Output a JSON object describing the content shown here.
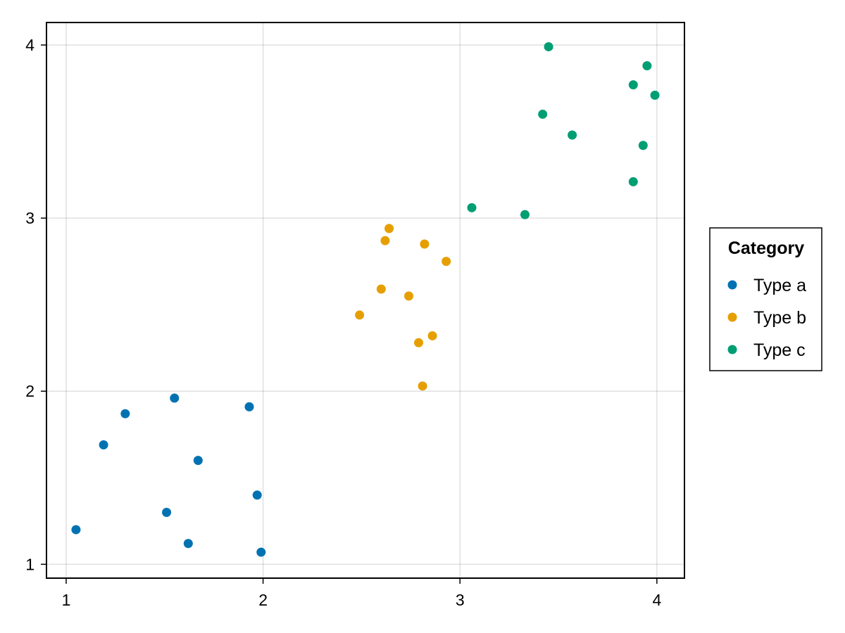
{
  "chart_data": {
    "type": "scatter",
    "title": "",
    "xlabel": "",
    "ylabel": "",
    "xlim": [
      0.9,
      4.14
    ],
    "ylim": [
      0.92,
      4.13
    ],
    "xticks": [
      "1",
      "2",
      "3",
      "4"
    ],
    "yticks": [
      "1",
      "2",
      "3",
      "4"
    ],
    "grid": true,
    "legend": {
      "title": "Category",
      "placement": "right"
    },
    "series": [
      {
        "name": "Type a",
        "color": "#0072b2",
        "points": [
          [
            1.05,
            1.2
          ],
          [
            1.19,
            1.69
          ],
          [
            1.3,
            1.87
          ],
          [
            1.51,
            1.3
          ],
          [
            1.55,
            1.96
          ],
          [
            1.62,
            1.12
          ],
          [
            1.67,
            1.6
          ],
          [
            1.93,
            1.91
          ],
          [
            1.97,
            1.4
          ],
          [
            1.99,
            1.07
          ]
        ]
      },
      {
        "name": "Type b",
        "color": "#e69f00",
        "points": [
          [
            2.49,
            2.44
          ],
          [
            2.6,
            2.59
          ],
          [
            2.62,
            2.87
          ],
          [
            2.64,
            2.94
          ],
          [
            2.74,
            2.55
          ],
          [
            2.79,
            2.28
          ],
          [
            2.81,
            2.03
          ],
          [
            2.82,
            2.85
          ],
          [
            2.86,
            2.32
          ],
          [
            2.93,
            2.75
          ]
        ]
      },
      {
        "name": "Type c",
        "color": "#009e73",
        "points": [
          [
            3.06,
            3.06
          ],
          [
            3.33,
            3.02
          ],
          [
            3.42,
            3.6
          ],
          [
            3.45,
            3.99
          ],
          [
            3.57,
            3.48
          ],
          [
            3.88,
            3.77
          ],
          [
            3.88,
            3.21
          ],
          [
            3.93,
            3.42
          ],
          [
            3.95,
            3.88
          ],
          [
            3.99,
            3.71
          ]
        ]
      }
    ]
  }
}
